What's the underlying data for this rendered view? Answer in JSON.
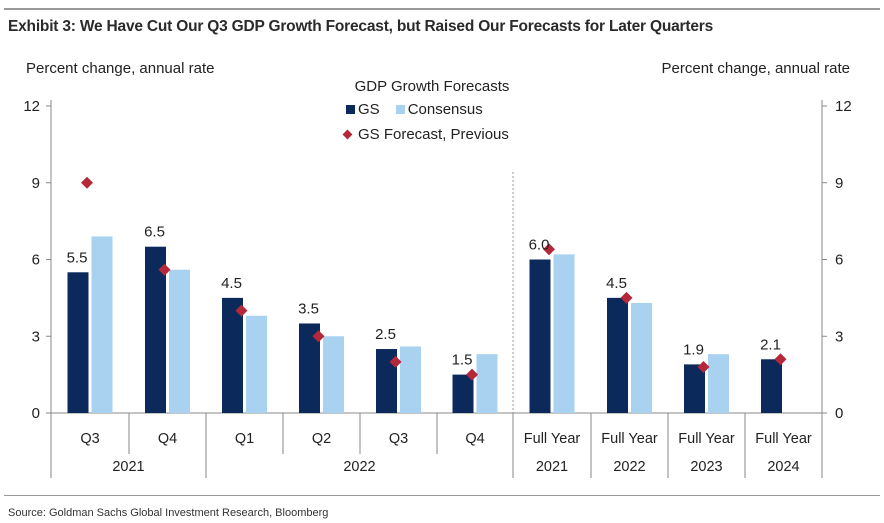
{
  "title": "Exhibit 3: We Have Cut Our Q3 GDP Growth Forecast, but Raised Our Forecasts for Later Quarters",
  "source": "Source: Goldman Sachs Global Investment Research, Bloomberg",
  "chart_data": {
    "type": "bar",
    "left_axis_label": "Percent change, annual rate",
    "right_axis_label": "Percent change, annual rate",
    "legend_title": "GDP Growth Forecasts",
    "legend_placement": "top-center",
    "ylim": [
      0,
      12
    ],
    "yticks": [
      "0",
      "3",
      "6",
      "9",
      "12"
    ],
    "yticks_right": [
      "0",
      "3",
      "6",
      "9",
      "12"
    ],
    "grid": false,
    "categories": [
      "Q3",
      "Q4",
      "Q1",
      "Q2",
      "Q3",
      "Q4",
      "Full Year",
      "Full Year",
      "Full Year",
      "Full Year"
    ],
    "group_labels": [
      "2021",
      "2022",
      "2021",
      "2022",
      "2023",
      "2024"
    ],
    "series": [
      {
        "name": "GS",
        "type": "bar",
        "color": "#0b2a5b",
        "values": [
          5.5,
          6.5,
          4.5,
          3.5,
          2.5,
          1.5,
          6.0,
          4.5,
          1.9,
          2.1
        ]
      },
      {
        "name": "Consensus",
        "type": "bar",
        "color": "#a9d1f0",
        "values": [
          6.9,
          5.6,
          3.8,
          3.0,
          2.6,
          2.3,
          6.2,
          4.3,
          2.3,
          null
        ]
      },
      {
        "name": "GS Forecast, Previous",
        "type": "marker",
        "color": "#b5283a",
        "values": [
          9.0,
          5.6,
          4.0,
          3.0,
          2.0,
          1.5,
          6.4,
          4.5,
          1.8,
          2.1
        ]
      }
    ],
    "data_labels": [
      "5.5",
      "6.5",
      "4.5",
      "3.5",
      "2.5",
      "1.5",
      "6.0",
      "4.5",
      "1.9",
      "2.1"
    ]
  }
}
